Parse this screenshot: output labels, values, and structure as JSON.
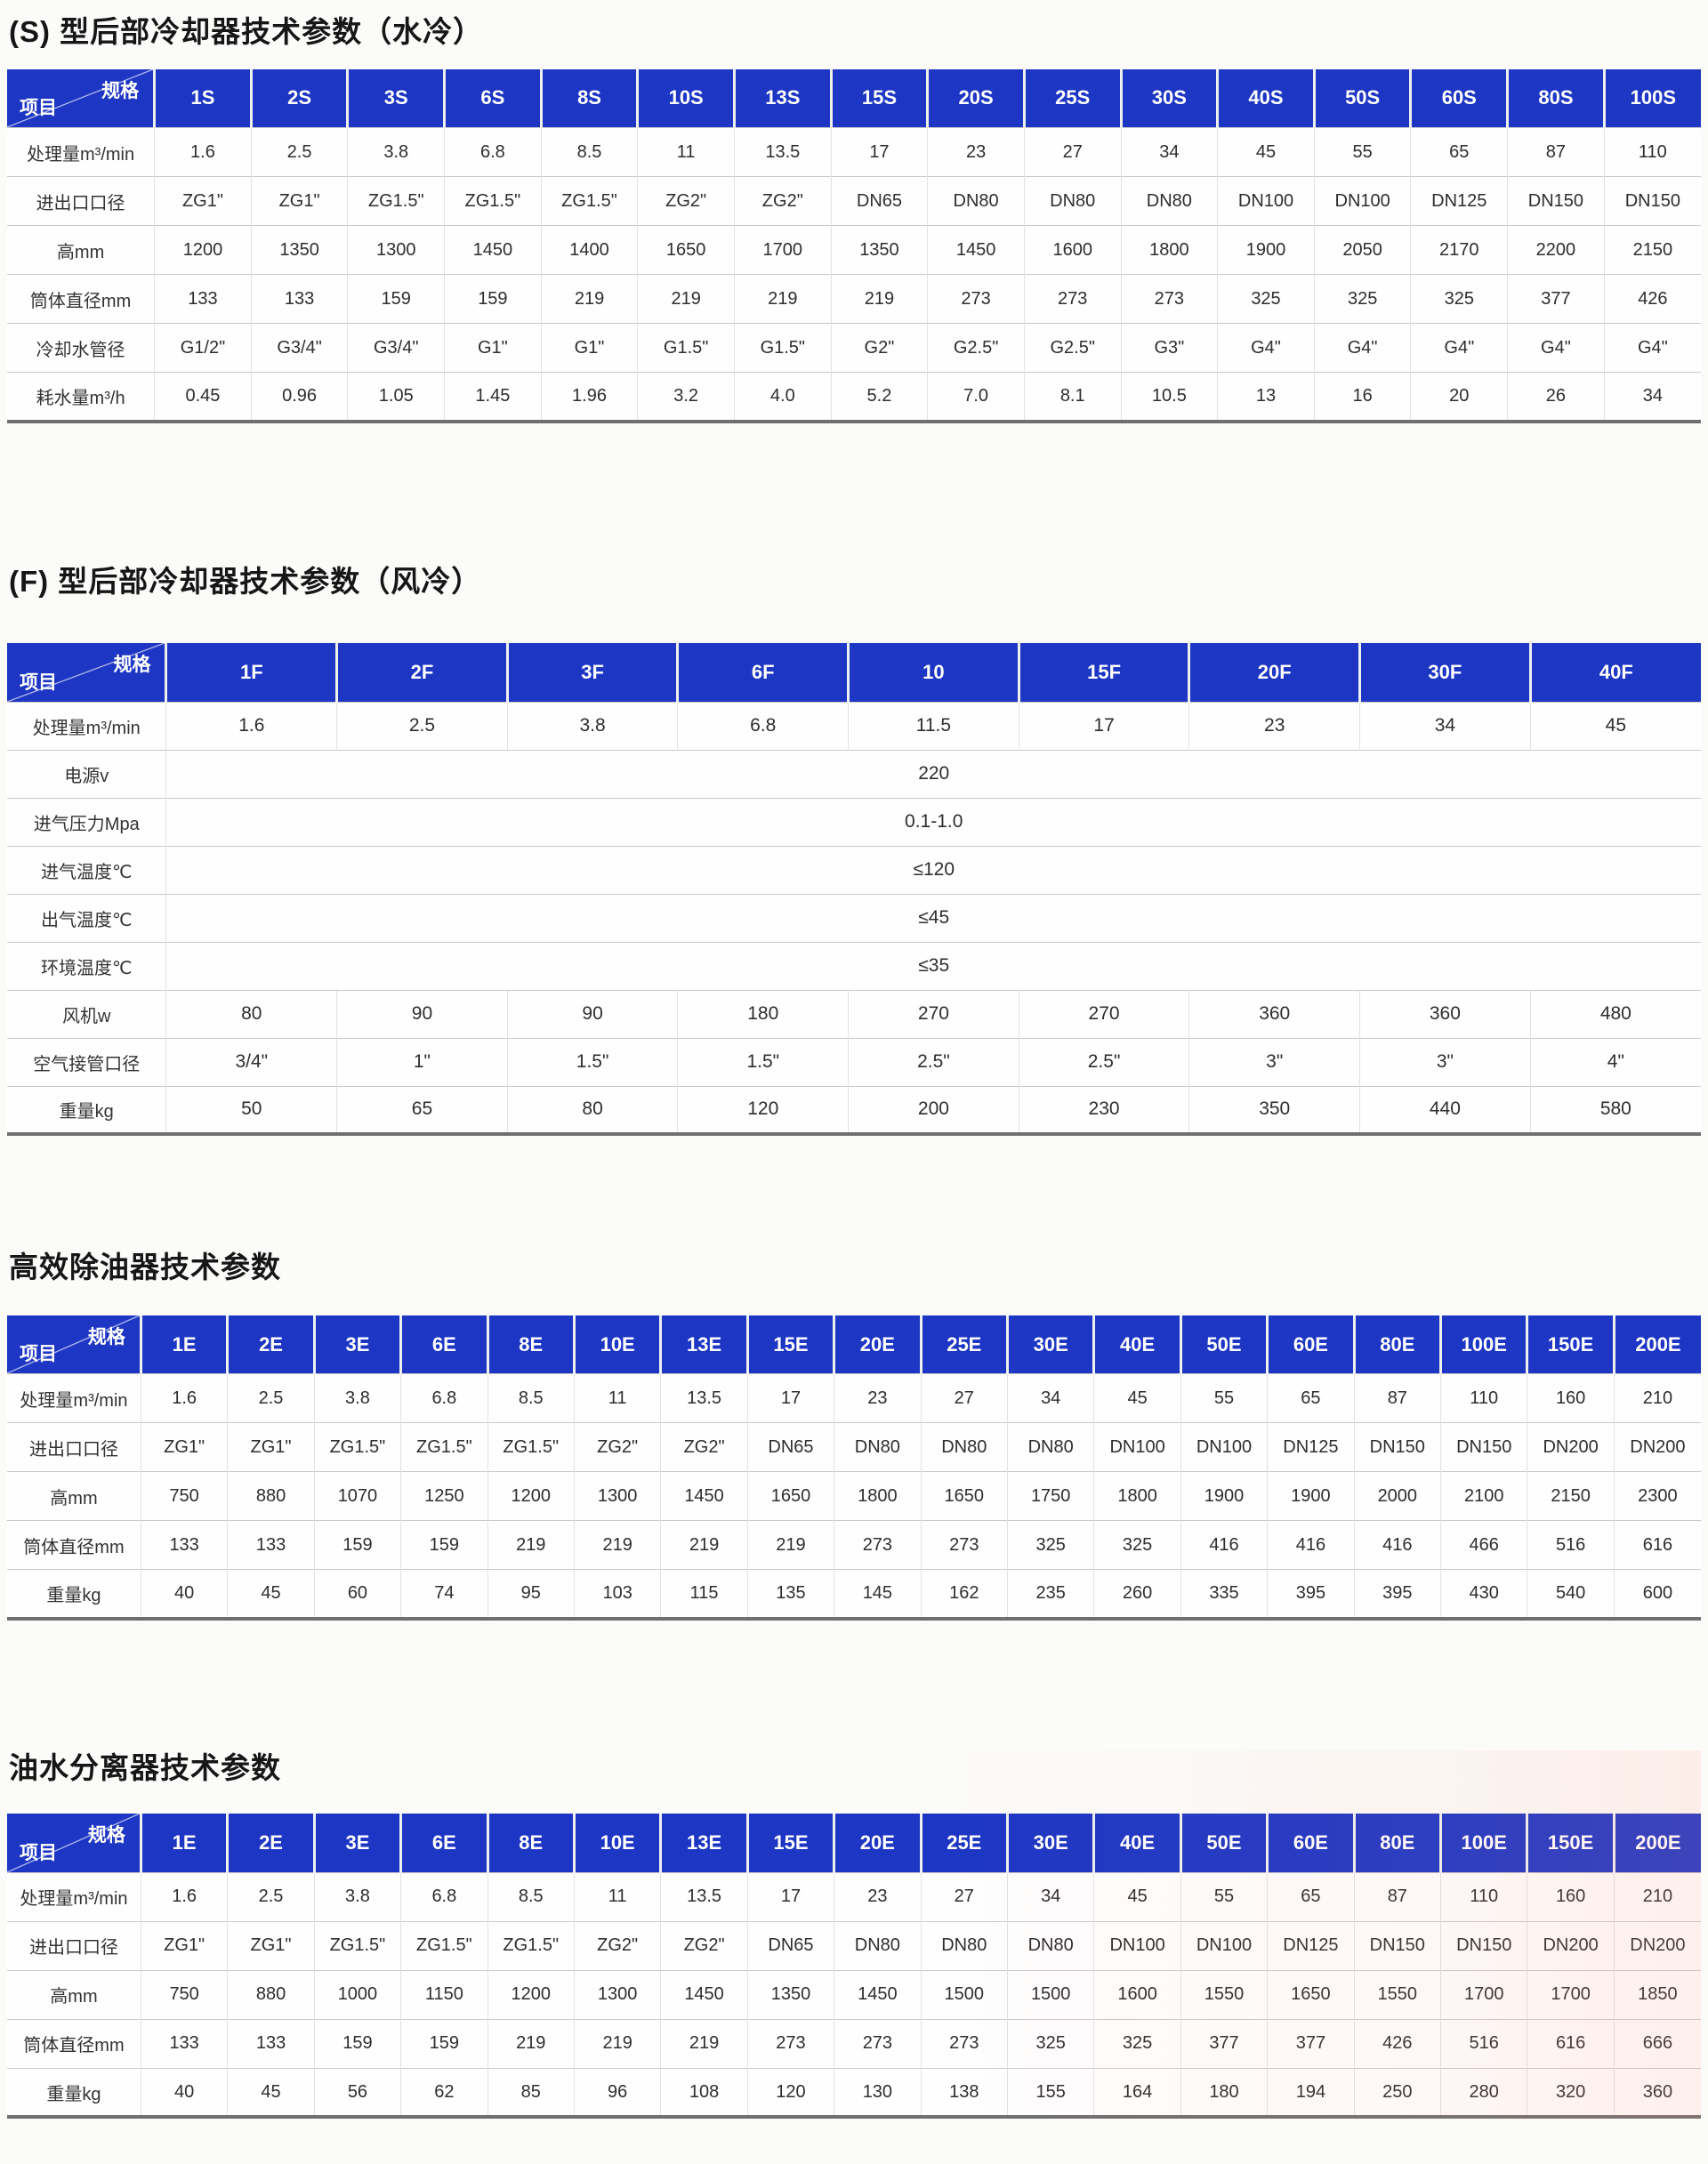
{
  "theme": {
    "header_blue": "#1d36c4",
    "header_text": "#ffffff"
  },
  "tables": [
    {
      "title": "(S) 型后部冷却器技术参数（水冷）",
      "corner": {
        "spec": "规格",
        "item": "项目"
      },
      "columns": [
        "1S",
        "2S",
        "3S",
        "6S",
        "8S",
        "10S",
        "13S",
        "15S",
        "20S",
        "25S",
        "30S",
        "40S",
        "50S",
        "60S",
        "80S",
        "100S"
      ],
      "rows": [
        {
          "label": "处理量m³/min",
          "values": [
            "1.6",
            "2.5",
            "3.8",
            "6.8",
            "8.5",
            "11",
            "13.5",
            "17",
            "23",
            "27",
            "34",
            "45",
            "55",
            "65",
            "87",
            "110"
          ]
        },
        {
          "label": "进出口口径",
          "values": [
            "ZG1\"",
            "ZG1\"",
            "ZG1.5\"",
            "ZG1.5\"",
            "ZG1.5\"",
            "ZG2\"",
            "ZG2\"",
            "DN65",
            "DN80",
            "DN80",
            "DN80",
            "DN100",
            "DN100",
            "DN125",
            "DN150",
            "DN150"
          ]
        },
        {
          "label": "高mm",
          "values": [
            "1200",
            "1350",
            "1300",
            "1450",
            "1400",
            "1650",
            "1700",
            "1350",
            "1450",
            "1600",
            "1800",
            "1900",
            "2050",
            "2170",
            "2200",
            "2150"
          ]
        },
        {
          "label": "筒体直径mm",
          "values": [
            "133",
            "133",
            "159",
            "159",
            "219",
            "219",
            "219",
            "219",
            "273",
            "273",
            "273",
            "325",
            "325",
            "325",
            "377",
            "426"
          ]
        },
        {
          "label": "冷却水管径",
          "values": [
            "G1/2\"",
            "G3/4\"",
            "G3/4\"",
            "G1\"",
            "G1\"",
            "G1.5\"",
            "G1.5\"",
            "G2\"",
            "G2.5\"",
            "G2.5\"",
            "G3\"",
            "G4\"",
            "G4\"",
            "G4\"",
            "G4\"",
            "G4\""
          ]
        },
        {
          "label": "耗水量m³/h",
          "values": [
            "0.45",
            "0.96",
            "1.05",
            "1.45",
            "1.96",
            "3.2",
            "4.0",
            "5.2",
            "7.0",
            "8.1",
            "10.5",
            "13",
            "16",
            "20",
            "26",
            "34"
          ]
        }
      ]
    },
    {
      "title": "(F) 型后部冷却器技术参数（风冷）",
      "corner": {
        "spec": "规格",
        "item": "项目"
      },
      "columns": [
        "1F",
        "2F",
        "3F",
        "6F",
        "10",
        "15F",
        "20F",
        "30F",
        "40F"
      ],
      "rows": [
        {
          "label": "处理量m³/min",
          "values": [
            "1.6",
            "2.5",
            "3.8",
            "6.8",
            "11.5",
            "17",
            "23",
            "34",
            "45"
          ]
        },
        {
          "label": "电源v",
          "merged": "220"
        },
        {
          "label": "进气压力Mpa",
          "merged": "0.1-1.0"
        },
        {
          "label": "进气温度℃",
          "merged": "≤120"
        },
        {
          "label": "出气温度℃",
          "merged": "≤45"
        },
        {
          "label": "环境温度℃",
          "merged": "≤35"
        },
        {
          "label": "风机w",
          "values": [
            "80",
            "90",
            "90",
            "180",
            "270",
            "270",
            "360",
            "360",
            "480"
          ]
        },
        {
          "label": "空气接管口径",
          "values": [
            "3/4\"",
            "1\"",
            "1.5\"",
            "1.5\"",
            "2.5\"",
            "2.5\"",
            "3\"",
            "3\"",
            "4\""
          ]
        },
        {
          "label": "重量kg",
          "values": [
            "50",
            "65",
            "80",
            "120",
            "200",
            "230",
            "350",
            "440",
            "580"
          ]
        }
      ]
    },
    {
      "title": "高效除油器技术参数",
      "corner": {
        "spec": "规格",
        "item": "项目"
      },
      "columns": [
        "1E",
        "2E",
        "3E",
        "6E",
        "8E",
        "10E",
        "13E",
        "15E",
        "20E",
        "25E",
        "30E",
        "40E",
        "50E",
        "60E",
        "80E",
        "100E",
        "150E",
        "200E"
      ],
      "rows": [
        {
          "label": "处理量m³/min",
          "values": [
            "1.6",
            "2.5",
            "3.8",
            "6.8",
            "8.5",
            "11",
            "13.5",
            "17",
            "23",
            "27",
            "34",
            "45",
            "55",
            "65",
            "87",
            "110",
            "160",
            "210"
          ]
        },
        {
          "label": "进出口口径",
          "values": [
            "ZG1\"",
            "ZG1\"",
            "ZG1.5\"",
            "ZG1.5\"",
            "ZG1.5\"",
            "ZG2\"",
            "ZG2\"",
            "DN65",
            "DN80",
            "DN80",
            "DN80",
            "DN100",
            "DN100",
            "DN125",
            "DN150",
            "DN150",
            "DN200",
            "DN200"
          ]
        },
        {
          "label": "高mm",
          "values": [
            "750",
            "880",
            "1070",
            "1250",
            "1200",
            "1300",
            "1450",
            "1650",
            "1800",
            "1650",
            "1750",
            "1800",
            "1900",
            "1900",
            "2000",
            "2100",
            "2150",
            "2300"
          ]
        },
        {
          "label": "筒体直径mm",
          "values": [
            "133",
            "133",
            "159",
            "159",
            "219",
            "219",
            "219",
            "219",
            "273",
            "273",
            "325",
            "325",
            "416",
            "416",
            "416",
            "466",
            "516",
            "616"
          ]
        },
        {
          "label": "重量kg",
          "values": [
            "40",
            "45",
            "60",
            "74",
            "95",
            "103",
            "115",
            "135",
            "145",
            "162",
            "235",
            "260",
            "335",
            "395",
            "395",
            "430",
            "540",
            "600"
          ]
        }
      ]
    },
    {
      "title": "油水分离器技术参数",
      "corner": {
        "spec": "规格",
        "item": "项目"
      },
      "columns": [
        "1E",
        "2E",
        "3E",
        "6E",
        "8E",
        "10E",
        "13E",
        "15E",
        "20E",
        "25E",
        "30E",
        "40E",
        "50E",
        "60E",
        "80E",
        "100E",
        "150E",
        "200E"
      ],
      "rows": [
        {
          "label": "处理量m³/min",
          "values": [
            "1.6",
            "2.5",
            "3.8",
            "6.8",
            "8.5",
            "11",
            "13.5",
            "17",
            "23",
            "27",
            "34",
            "45",
            "55",
            "65",
            "87",
            "110",
            "160",
            "210"
          ]
        },
        {
          "label": "进出口口径",
          "values": [
            "ZG1\"",
            "ZG1\"",
            "ZG1.5\"",
            "ZG1.5\"",
            "ZG1.5\"",
            "ZG2\"",
            "ZG2\"",
            "DN65",
            "DN80",
            "DN80",
            "DN80",
            "DN100",
            "DN100",
            "DN125",
            "DN150",
            "DN150",
            "DN200",
            "DN200"
          ]
        },
        {
          "label": "高mm",
          "values": [
            "750",
            "880",
            "1000",
            "1150",
            "1200",
            "1300",
            "1450",
            "1350",
            "1450",
            "1500",
            "1500",
            "1600",
            "1550",
            "1650",
            "1550",
            "1700",
            "1700",
            "1850"
          ]
        },
        {
          "label": "筒体直径mm",
          "values": [
            "133",
            "133",
            "159",
            "159",
            "219",
            "219",
            "219",
            "273",
            "273",
            "273",
            "325",
            "325",
            "377",
            "377",
            "426",
            "516",
            "616",
            "666"
          ]
        },
        {
          "label": "重量kg",
          "values": [
            "40",
            "45",
            "56",
            "62",
            "85",
            "96",
            "108",
            "120",
            "130",
            "138",
            "155",
            "164",
            "180",
            "194",
            "250",
            "280",
            "320",
            "360"
          ]
        }
      ]
    }
  ]
}
